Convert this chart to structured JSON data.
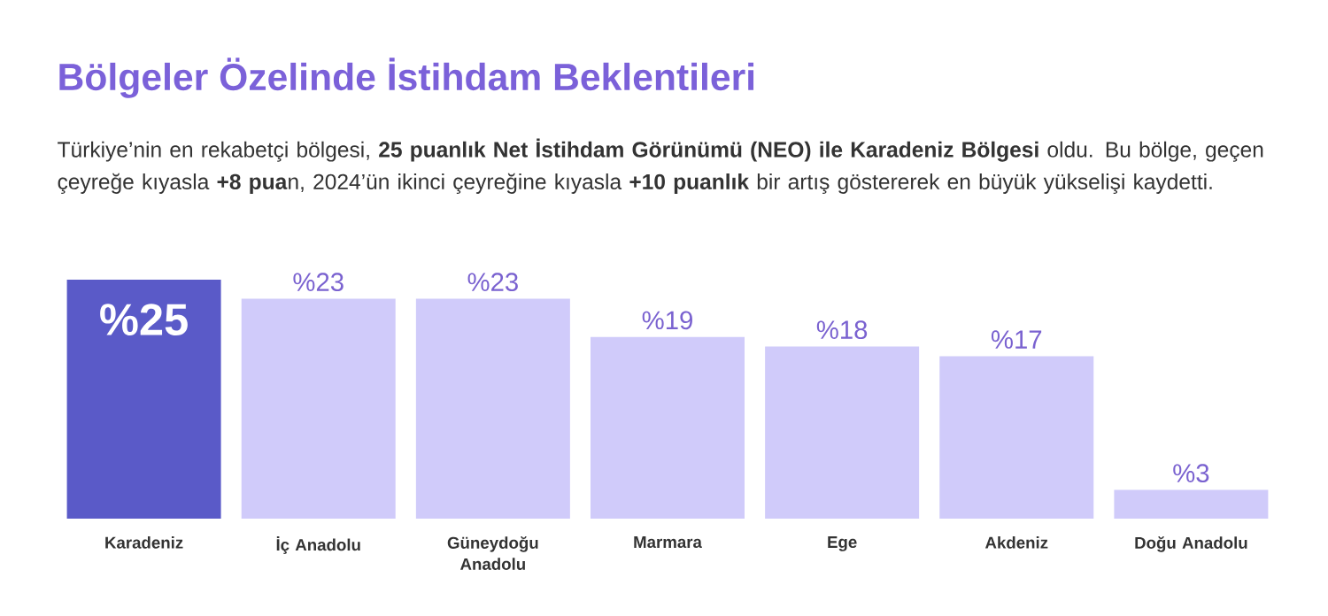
{
  "chart_data": {
    "type": "bar",
    "title": "Bölgeler Özelinde İstihdam Beklentileri",
    "subtitle": "Türkiye’nin en rekabetçi bölgesi, **25 puanlık Net İstihdam Görünümü (NEO) ile Karadeniz Bölgesi** oldu. Bu bölge, geçen çeyreğe kıyasla **+8 pua**n, 2024’ün ikinci çeyreğine kıyasla **+10 puanlık** bir artış göstererek en büyük yükselişi kaydetti.",
    "categories": [
      "Karadeniz",
      "İç Anadolu",
      "Güneydoğu Anadolu",
      "Marmara",
      "Ege",
      "Akdeniz",
      "Doğu Anadolu"
    ],
    "values": [
      25,
      23,
      23,
      19,
      18,
      17,
      3
    ],
    "colors": [
      "#5a5ac8",
      "#d0cbfa",
      "#d0cbfa",
      "#d0cbfa",
      "#d0cbfa",
      "#d0cbfa",
      "#d0cbfa"
    ],
    "value_labels": [
      "%25",
      "%23",
      "%23",
      "%19",
      "%18",
      "%17",
      "%3"
    ]
  }
}
